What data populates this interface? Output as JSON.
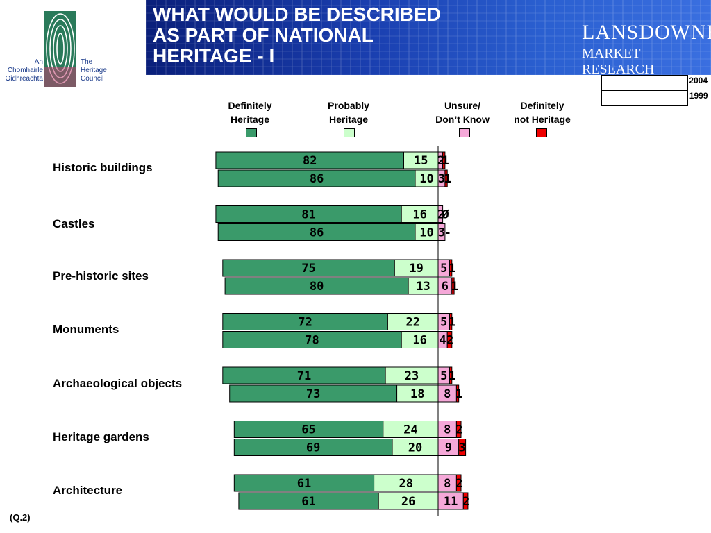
{
  "logo": {
    "left_text": [
      "An",
      "Chomhairle",
      "Oidhreachta"
    ],
    "right_text": [
      "The",
      "Heritage",
      "Council"
    ]
  },
  "header": {
    "title_lines": [
      "WHAT WOULD BE DESCRIBED",
      "AS PART OF NATIONAL",
      "HERITAGE - I"
    ],
    "brand_line1": "LANSDOWNE",
    "brand_line2": "MARKET RESEARCH"
  },
  "years": [
    "2004",
    "1999"
  ],
  "legend": [
    {
      "label_lines": [
        "Definitely",
        "Heritage"
      ],
      "color": "#3a9a6a"
    },
    {
      "label_lines": [
        "Probably",
        "Heritage"
      ],
      "color": "#ccffcc"
    },
    {
      "label_lines": [
        "Unsure/",
        "Don’t Know"
      ],
      "color": "#f5a8d8"
    },
    {
      "label_lines": [
        "Definitely",
        "not Heritage"
      ],
      "color": "#ee0000"
    }
  ],
  "chart_data": {
    "type": "bar",
    "orientation": "horizontal",
    "stacked": true,
    "diverging_at": "Probably/Unsure boundary",
    "series": [
      {
        "name": "Definitely Heritage"
      },
      {
        "name": "Probably Heritage"
      },
      {
        "name": "Unsure/ Don’t Know"
      },
      {
        "name": "Definitely not Heritage"
      }
    ],
    "categories": [
      {
        "name": "Historic buildings",
        "y2004": [
          "82",
          "15",
          "2",
          "1"
        ],
        "y1999": [
          "86",
          "10",
          "3",
          "1"
        ]
      },
      {
        "name": "Castles",
        "y2004": [
          "81",
          "16",
          "2",
          "Ø"
        ],
        "y1999": [
          "86",
          "10",
          "3",
          "-"
        ]
      },
      {
        "name": "Pre-historic sites",
        "y2004": [
          "75",
          "19",
          "5",
          "1"
        ],
        "y1999": [
          "80",
          "13",
          "6",
          "1"
        ]
      },
      {
        "name": "Monuments",
        "y2004": [
          "72",
          "22",
          "5",
          "1"
        ],
        "y1999": [
          "78",
          "16",
          "4",
          "2"
        ]
      },
      {
        "name": "Archaeological objects",
        "y2004": [
          "71",
          "23",
          "5",
          "1"
        ],
        "y1999": [
          "73",
          "18",
          "8",
          "1"
        ]
      },
      {
        "name": "Heritage gardens",
        "y2004": [
          "65",
          "24",
          "8",
          "2"
        ],
        "y1999": [
          "69",
          "20",
          "9",
          "3"
        ]
      },
      {
        "name": "Architecture",
        "y2004": [
          "61",
          "28",
          "8",
          "2"
        ],
        "y1999": [
          "61",
          "26",
          "11",
          "2"
        ]
      }
    ]
  },
  "source_note": "(Q.2)"
}
